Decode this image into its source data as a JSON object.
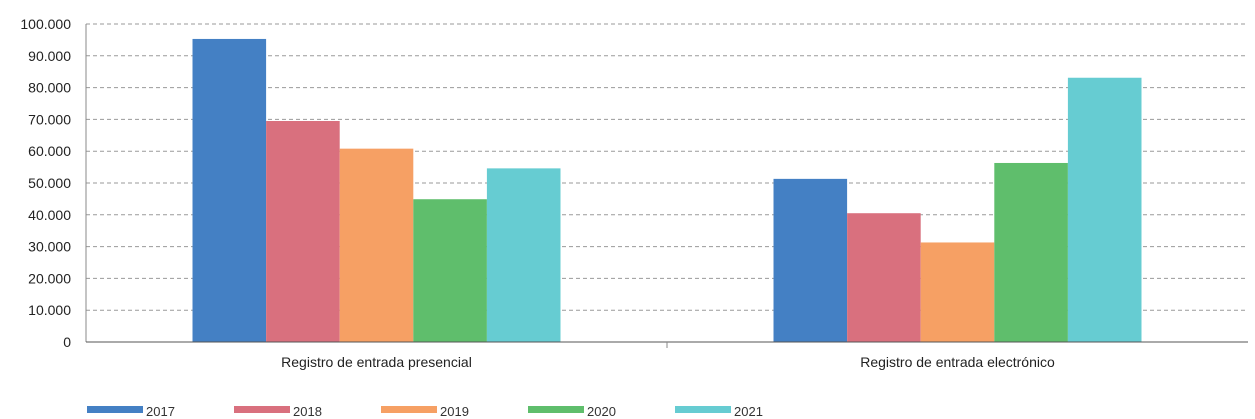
{
  "chart_data": {
    "type": "bar",
    "categories": [
      "Registro de entrada presencial",
      "Registro de entrada electrónico"
    ],
    "series": [
      {
        "name": "2017",
        "color": "#4480C4",
        "values": [
          95300,
          51300
        ]
      },
      {
        "name": "2018",
        "color": "#D9707E",
        "values": [
          69500,
          40500
        ]
      },
      {
        "name": "2019",
        "color": "#F6A064",
        "values": [
          60800,
          31300
        ]
      },
      {
        "name": "2020",
        "color": "#5FBE6C",
        "values": [
          44900,
          56300
        ]
      },
      {
        "name": "2021",
        "color": "#66CCD2",
        "values": [
          54600,
          83100
        ]
      }
    ],
    "ylim": [
      0,
      100000
    ],
    "yticks": [
      0,
      10000,
      20000,
      30000,
      40000,
      50000,
      60000,
      70000,
      80000,
      90000,
      100000
    ],
    "ytick_labels": [
      "0",
      "10.000",
      "20.000",
      "30.000",
      "40.000",
      "50.000",
      "60.000",
      "70.000",
      "80.000",
      "90.000",
      "100.000"
    ],
    "grid": true,
    "legend_position": "bottom-left"
  }
}
